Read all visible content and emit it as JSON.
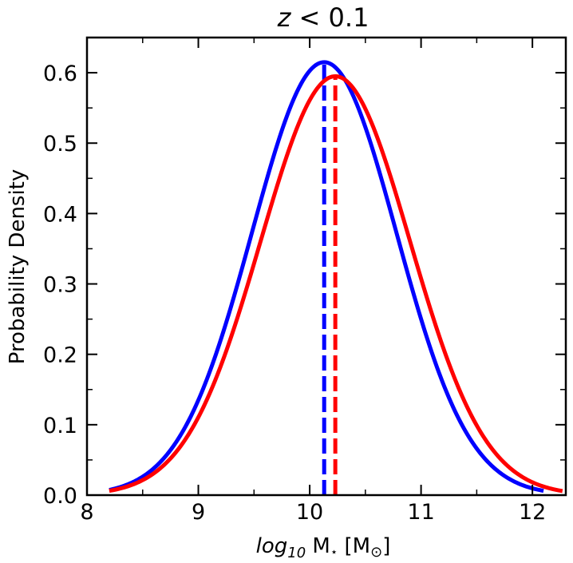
{
  "chart_data": {
    "type": "line",
    "title_var": "z",
    "title_rest": " < 0.1",
    "xlabel": {
      "log": "log",
      "sub": "10",
      "m": " M",
      "star": "⋆",
      "bracket_open": " [M",
      "sun": "⊙",
      "bracket_close": "]"
    },
    "ylabel": "Probability Density",
    "xlim": [
      8,
      12.3
    ],
    "ylim": [
      0,
      0.65
    ],
    "xticks": [
      8,
      9,
      10,
      11,
      12
    ],
    "xtick_labels": [
      "8",
      "9",
      "10",
      "11",
      "12"
    ],
    "yticks": [
      0,
      0.1,
      0.2,
      0.3,
      0.4,
      0.5,
      0.6
    ],
    "ytick_labels": [
      "0.0",
      "0.1",
      "0.2",
      "0.3",
      "0.4",
      "0.5",
      "0.6"
    ],
    "series": [
      {
        "name": "blue",
        "color": "#0000ff",
        "distribution": "gaussian",
        "mean": 10.13,
        "peak_density": 0.615,
        "x_start": 8.2,
        "x_end": 12.1,
        "median_marker": 10.13
      },
      {
        "name": "red",
        "color": "#ff0000",
        "distribution": "gaussian",
        "mean": 10.23,
        "peak_density": 0.595,
        "x_start": 8.2,
        "x_end": 12.27,
        "median_marker": 10.23
      }
    ]
  }
}
